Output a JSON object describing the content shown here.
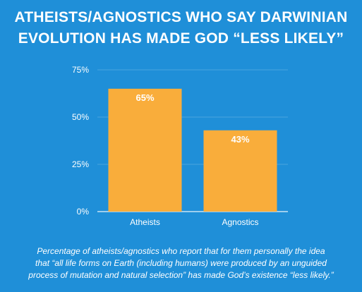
{
  "chart_data": {
    "type": "bar",
    "title_lines": [
      "ATHEISTS/AGNOSTICS WHO SAY DARWINIAN",
      "EVOLUTION HAS MADE GOD “LESS LIKELY”"
    ],
    "categories": [
      "Atheists",
      "Agnostics"
    ],
    "values": [
      65,
      43
    ],
    "value_labels": [
      "65%",
      "43%"
    ],
    "yticks": [
      0,
      25,
      50,
      75
    ],
    "ytick_labels": [
      "0%",
      "25%",
      "50%",
      "75%"
    ],
    "ylim": [
      0,
      75
    ],
    "grid": true,
    "legend": "none",
    "colors": {
      "background": "#1f8fd8",
      "bar": "#f9ad3b",
      "text": "#ffffff",
      "grid": "#6fb7e6"
    }
  },
  "caption_lines": [
    "Percentage of atheists/agnostics who report that for them personally the idea",
    "that “all life forms on Earth (including humans) were produced by an unguided",
    "process of mutation and natural selection” has made God’s existence “less likely.”"
  ]
}
